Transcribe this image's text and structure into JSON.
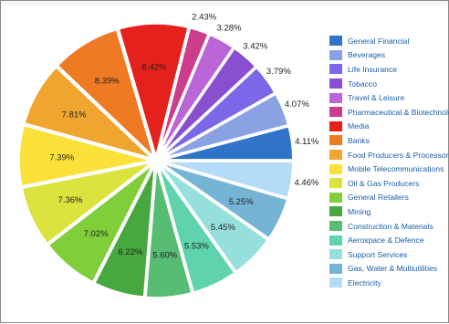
{
  "chart_data": {
    "type": "pie",
    "title": "",
    "categories": [
      "General Financial",
      "Beverages",
      "Life Insurance",
      "Tobacco",
      "Travel & Leisure",
      "Pharmaceutical & Biotechnology",
      "Media",
      "Banks",
      "Food Producers & Processors",
      "Mobile Telecommunications",
      "Oil & Gas Producers",
      "General Retailers",
      "Mining",
      "Construction & Materials",
      "Aerospace & Defence",
      "Support Services",
      "Gas, Water & Multiutilities",
      "Electricity"
    ],
    "values": [
      4.11,
      4.07,
      3.79,
      3.42,
      3.28,
      2.43,
      8.42,
      8.39,
      7.81,
      7.39,
      7.36,
      7.02,
      6.22,
      5.6,
      5.53,
      5.45,
      5.25,
      4.46
    ],
    "value_labels": [
      "4.11%",
      "4.07%",
      "3.79%",
      "3.42%",
      "3.28%",
      "2.43%",
      "8.42%",
      "8.39%",
      "7.81%",
      "7.39%",
      "7.36%",
      "7.02%",
      "6.22%",
      "5.60%",
      "5.53%",
      "5.45%",
      "5.25%",
      "4.46%"
    ],
    "colors": [
      "#2f74c9",
      "#8aa2e4",
      "#7b68e8",
      "#8a4fd0",
      "#bb66d6",
      "#cc3d8c",
      "#e4211c",
      "#ee7a24",
      "#f0a531",
      "#fbe13a",
      "#dce23e",
      "#7fce3a",
      "#48a840",
      "#56bd72",
      "#5ed3ad",
      "#95e0dc",
      "#76b4d6",
      "#b4dcf8"
    ],
    "label_placement": "outside for small slices, inside for large slices",
    "legend": "right",
    "exploded": true
  }
}
